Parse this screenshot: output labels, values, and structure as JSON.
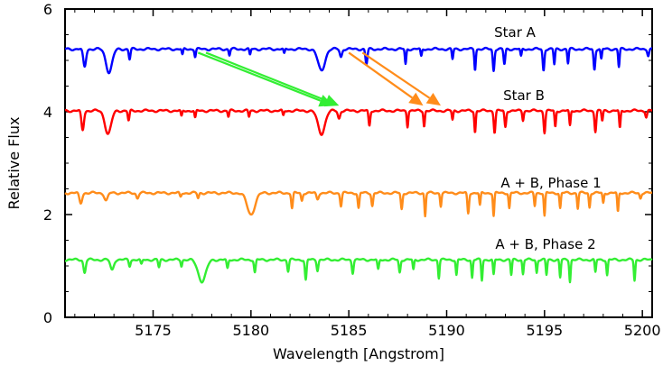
{
  "chart_data": {
    "type": "line",
    "title": "",
    "xlabel": "Wavelength [Angstrom]",
    "ylabel": "Relative Flux",
    "xlim": [
      5170.5,
      5200.5
    ],
    "ylim": [
      0,
      6
    ],
    "x_ticks": [
      5175,
      5180,
      5185,
      5190,
      5195,
      5200
    ],
    "x_tick_labels": [
      "5175",
      "5180",
      "5185",
      "5190",
      "5195",
      "5200"
    ],
    "y_ticks": [
      0,
      2,
      4,
      6
    ],
    "y_tick_labels": [
      "0",
      "2",
      "4",
      "6"
    ],
    "grid": false,
    "series": [
      {
        "name": "Star A",
        "color": "#0000ff",
        "baseline": 5.22,
        "lines": [
          [
            5171.5,
            0.35,
            0.1
          ],
          [
            5172.75,
            0.45,
            0.22
          ],
          [
            5173.8,
            0.2,
            0.06
          ],
          [
            5176.5,
            0.12,
            0.05
          ],
          [
            5177.15,
            0.15,
            0.05
          ],
          [
            5178.9,
            0.12,
            0.05
          ],
          [
            5179.95,
            0.12,
            0.05
          ],
          [
            5181.7,
            0.1,
            0.05
          ],
          [
            5183.6,
            0.42,
            0.25
          ],
          [
            5184.6,
            0.15,
            0.08
          ],
          [
            5185.9,
            0.3,
            0.07
          ],
          [
            5187.9,
            0.3,
            0.05
          ],
          [
            5188.7,
            0.15,
            0.05
          ],
          [
            5190.3,
            0.2,
            0.05
          ],
          [
            5191.45,
            0.4,
            0.05
          ],
          [
            5192.4,
            0.42,
            0.06
          ],
          [
            5192.95,
            0.3,
            0.06
          ],
          [
            5193.8,
            0.15,
            0.05
          ],
          [
            5194.95,
            0.42,
            0.06
          ],
          [
            5195.5,
            0.3,
            0.05
          ],
          [
            5196.2,
            0.28,
            0.05
          ],
          [
            5197.55,
            0.4,
            0.06
          ],
          [
            5197.9,
            0.2,
            0.05
          ],
          [
            5198.8,
            0.35,
            0.05
          ],
          [
            5200.3,
            0.12,
            0.06
          ]
        ]
      },
      {
        "name": "Star B",
        "color": "#ff0000",
        "baseline": 4.02,
        "lines": [
          [
            5171.4,
            0.38,
            0.09
          ],
          [
            5172.7,
            0.45,
            0.22
          ],
          [
            5173.75,
            0.2,
            0.06
          ],
          [
            5176.45,
            0.12,
            0.05
          ],
          [
            5177.15,
            0.15,
            0.05
          ],
          [
            5178.85,
            0.12,
            0.05
          ],
          [
            5179.9,
            0.12,
            0.05
          ],
          [
            5181.65,
            0.1,
            0.05
          ],
          [
            5183.6,
            0.45,
            0.25
          ],
          [
            5184.5,
            0.15,
            0.08
          ],
          [
            5186.05,
            0.3,
            0.06
          ],
          [
            5188.0,
            0.3,
            0.05
          ],
          [
            5188.85,
            0.3,
            0.05
          ],
          [
            5190.3,
            0.18,
            0.05
          ],
          [
            5191.45,
            0.42,
            0.05
          ],
          [
            5192.45,
            0.42,
            0.06
          ],
          [
            5193.0,
            0.32,
            0.06
          ],
          [
            5193.9,
            0.18,
            0.05
          ],
          [
            5195.0,
            0.42,
            0.06
          ],
          [
            5195.55,
            0.32,
            0.05
          ],
          [
            5196.3,
            0.3,
            0.05
          ],
          [
            5197.6,
            0.4,
            0.06
          ],
          [
            5197.95,
            0.2,
            0.05
          ],
          [
            5198.85,
            0.35,
            0.05
          ],
          [
            5200.2,
            0.12,
            0.06
          ]
        ]
      },
      {
        "name": "A + B, Phase 1",
        "color": "#ff8c1a",
        "baseline": 2.42,
        "lines": [
          [
            5171.3,
            0.2,
            0.1
          ],
          [
            5172.6,
            0.15,
            0.12
          ],
          [
            5174.2,
            0.1,
            0.08
          ],
          [
            5176.4,
            0.08,
            0.06
          ],
          [
            5177.3,
            0.1,
            0.06
          ],
          [
            5180.0,
            0.42,
            0.28
          ],
          [
            5182.1,
            0.3,
            0.06
          ],
          [
            5182.6,
            0.15,
            0.06
          ],
          [
            5183.4,
            0.12,
            0.08
          ],
          [
            5184.6,
            0.25,
            0.06
          ],
          [
            5185.5,
            0.3,
            0.06
          ],
          [
            5186.2,
            0.25,
            0.06
          ],
          [
            5187.7,
            0.32,
            0.06
          ],
          [
            5188.9,
            0.45,
            0.05
          ],
          [
            5189.7,
            0.25,
            0.05
          ],
          [
            5191.1,
            0.4,
            0.06
          ],
          [
            5191.7,
            0.25,
            0.05
          ],
          [
            5192.4,
            0.45,
            0.05
          ],
          [
            5193.2,
            0.3,
            0.05
          ],
          [
            5194.5,
            0.25,
            0.05
          ],
          [
            5195.0,
            0.45,
            0.05
          ],
          [
            5195.8,
            0.3,
            0.05
          ],
          [
            5196.7,
            0.3,
            0.05
          ],
          [
            5197.3,
            0.28,
            0.05
          ],
          [
            5198.0,
            0.2,
            0.05
          ],
          [
            5198.75,
            0.38,
            0.05
          ],
          [
            5199.9,
            0.1,
            0.06
          ]
        ]
      },
      {
        "name": "A + B, Phase 2",
        "color": "#33ee33",
        "baseline": 1.12,
        "lines": [
          [
            5171.5,
            0.25,
            0.08
          ],
          [
            5172.9,
            0.2,
            0.12
          ],
          [
            5173.8,
            0.12,
            0.06
          ],
          [
            5174.4,
            0.1,
            0.06
          ],
          [
            5175.3,
            0.15,
            0.06
          ],
          [
            5176.45,
            0.12,
            0.05
          ],
          [
            5177.5,
            0.42,
            0.28
          ],
          [
            5178.8,
            0.18,
            0.06
          ],
          [
            5180.2,
            0.25,
            0.06
          ],
          [
            5181.9,
            0.22,
            0.06
          ],
          [
            5182.8,
            0.4,
            0.06
          ],
          [
            5183.4,
            0.2,
            0.06
          ],
          [
            5185.2,
            0.25,
            0.06
          ],
          [
            5186.5,
            0.2,
            0.06
          ],
          [
            5187.6,
            0.25,
            0.06
          ],
          [
            5188.3,
            0.2,
            0.05
          ],
          [
            5189.6,
            0.35,
            0.05
          ],
          [
            5190.5,
            0.3,
            0.05
          ],
          [
            5191.3,
            0.35,
            0.05
          ],
          [
            5191.8,
            0.4,
            0.05
          ],
          [
            5192.4,
            0.3,
            0.05
          ],
          [
            5193.3,
            0.3,
            0.05
          ],
          [
            5193.9,
            0.28,
            0.05
          ],
          [
            5194.6,
            0.25,
            0.05
          ],
          [
            5195.1,
            0.3,
            0.05
          ],
          [
            5195.8,
            0.35,
            0.05
          ],
          [
            5196.3,
            0.42,
            0.05
          ],
          [
            5197.6,
            0.25,
            0.05
          ],
          [
            5198.2,
            0.3,
            0.05
          ],
          [
            5199.6,
            0.4,
            0.05
          ]
        ]
      }
    ],
    "annotations": [
      {
        "name": "shift-arrow-green-1",
        "color": "#33ee33",
        "from": [
          5177.3,
          5.15
        ],
        "to": [
          5184.2,
          4.12
        ]
      },
      {
        "name": "shift-arrow-green-2",
        "color": "#33ee33",
        "from": [
          5177.7,
          5.15
        ],
        "to": [
          5184.5,
          4.12
        ]
      },
      {
        "name": "shift-arrow-orange-1",
        "color": "#ff8c1a",
        "from": [
          5185.0,
          5.15
        ],
        "to": [
          5188.8,
          4.12
        ]
      },
      {
        "name": "shift-arrow-orange-2",
        "color": "#ff8c1a",
        "from": [
          5185.7,
          5.15
        ],
        "to": [
          5189.7,
          4.12
        ]
      }
    ]
  }
}
